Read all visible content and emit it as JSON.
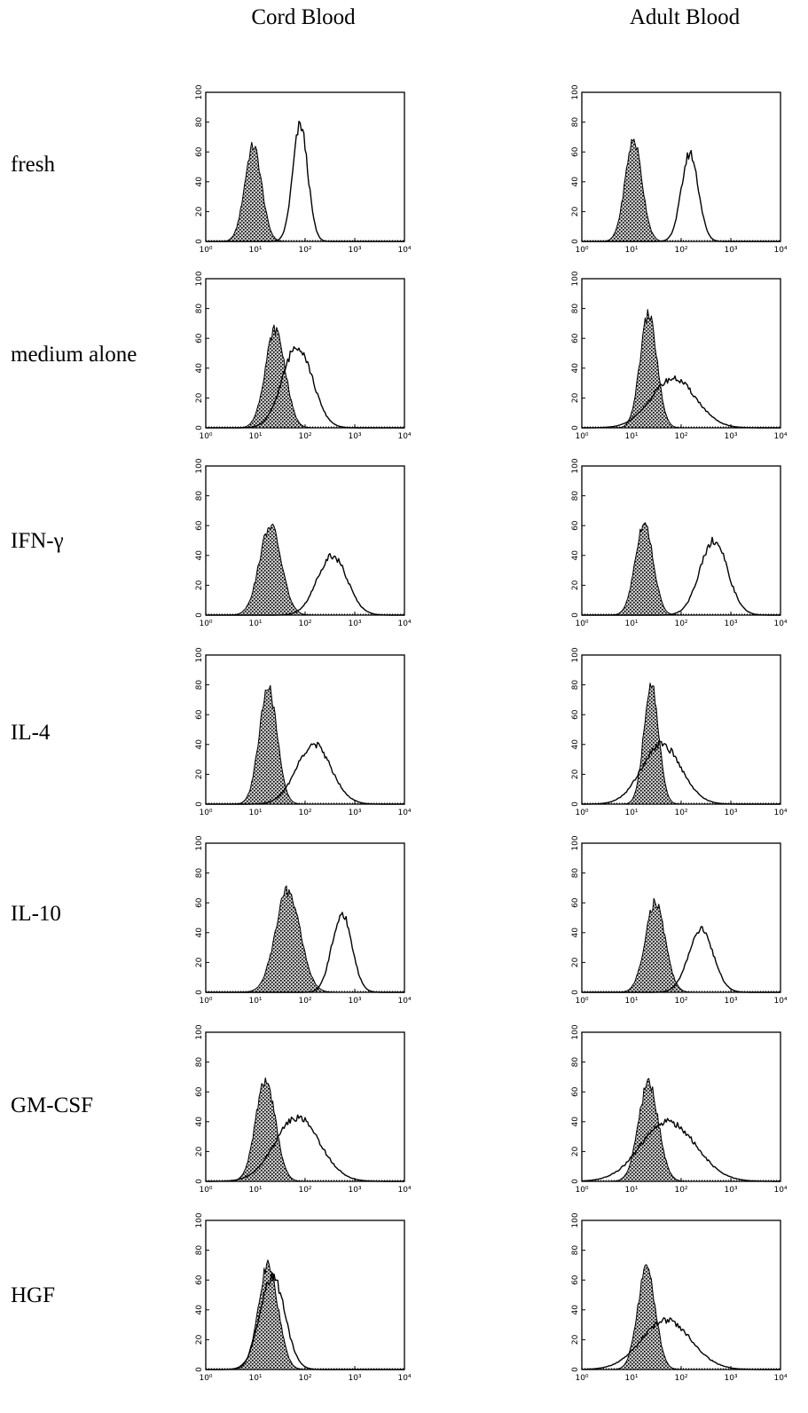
{
  "columns": [
    "Cord Blood",
    "Adult Blood"
  ],
  "rows": [
    "fresh",
    "medium alone",
    "IFN-γ",
    "IL-4",
    "IL-10",
    "GM-CSF",
    "HGF"
  ],
  "chart_data": {
    "type": "area",
    "xscale": "log",
    "xlim": [
      1,
      10000
    ],
    "ylim": [
      0,
      100
    ],
    "xticks": [
      "10⁰",
      "10¹",
      "10²",
      "10³",
      "10⁴"
    ],
    "yticks": [
      "0",
      "20",
      "40",
      "60",
      "80",
      "100"
    ],
    "series_styles": {
      "isotype": "stippled fill",
      "stained": "open line"
    },
    "panels": [
      {
        "row": "fresh",
        "column": "Cord Blood",
        "isotype": {
          "peak_x": 9,
          "peak_y": 64,
          "width_decades": 0.17
        },
        "stained": {
          "peak_x": 80,
          "peak_y": 78,
          "width_decades": 0.15
        }
      },
      {
        "row": "fresh",
        "column": "Adult Blood",
        "isotype": {
          "peak_x": 11,
          "peak_y": 68,
          "width_decades": 0.17
        },
        "stained": {
          "peak_x": 150,
          "peak_y": 59,
          "width_decades": 0.17
        }
      },
      {
        "row": "medium alone",
        "column": "Cord Blood",
        "isotype": {
          "peak_x": 25,
          "peak_y": 66,
          "width_decades": 0.2
        },
        "stained": {
          "peak_x": 70,
          "peak_y": 55,
          "width_decades": 0.3
        }
      },
      {
        "row": "medium alone",
        "column": "Adult Blood",
        "isotype": {
          "peak_x": 22,
          "peak_y": 76,
          "width_decades": 0.17
        },
        "stained": {
          "peak_x": 70,
          "peak_y": 33,
          "width_decades": 0.45
        }
      },
      {
        "row": "IFN-γ",
        "column": "Cord Blood",
        "isotype": {
          "peak_x": 20,
          "peak_y": 60,
          "width_decades": 0.22
        },
        "stained": {
          "peak_x": 350,
          "peak_y": 40,
          "width_decades": 0.3
        }
      },
      {
        "row": "IFN-γ",
        "column": "Adult Blood",
        "isotype": {
          "peak_x": 18,
          "peak_y": 62,
          "width_decades": 0.18
        },
        "stained": {
          "peak_x": 450,
          "peak_y": 50,
          "width_decades": 0.28
        }
      },
      {
        "row": "IL-4",
        "column": "Cord Blood",
        "isotype": {
          "peak_x": 18,
          "peak_y": 78,
          "width_decades": 0.18
        },
        "stained": {
          "peak_x": 150,
          "peak_y": 40,
          "width_decades": 0.35
        }
      },
      {
        "row": "IL-4",
        "column": "Adult Blood",
        "isotype": {
          "peak_x": 25,
          "peak_y": 80,
          "width_decades": 0.15
        },
        "stained": {
          "peak_x": 40,
          "peak_y": 40,
          "width_decades": 0.4
        }
      },
      {
        "row": "IL-10",
        "column": "Cord Blood",
        "isotype": {
          "peak_x": 45,
          "peak_y": 68,
          "width_decades": 0.25
        },
        "stained": {
          "peak_x": 550,
          "peak_y": 53,
          "width_decades": 0.2
        }
      },
      {
        "row": "IL-10",
        "column": "Adult Blood",
        "isotype": {
          "peak_x": 30,
          "peak_y": 60,
          "width_decades": 0.2
        },
        "stained": {
          "peak_x": 250,
          "peak_y": 42,
          "width_decades": 0.25
        }
      },
      {
        "row": "GM-CSF",
        "column": "Cord Blood",
        "isotype": {
          "peak_x": 16,
          "peak_y": 68,
          "width_decades": 0.2
        },
        "stained": {
          "peak_x": 70,
          "peak_y": 43,
          "width_decades": 0.45
        }
      },
      {
        "row": "GM-CSF",
        "column": "Adult Blood",
        "isotype": {
          "peak_x": 22,
          "peak_y": 66,
          "width_decades": 0.2
        },
        "stained": {
          "peak_x": 55,
          "peak_y": 40,
          "width_decades": 0.55
        }
      },
      {
        "row": "HGF",
        "column": "Cord Blood",
        "isotype": {
          "peak_x": 18,
          "peak_y": 70,
          "width_decades": 0.2
        },
        "stained": {
          "peak_x": 22,
          "peak_y": 62,
          "width_decades": 0.25
        }
      },
      {
        "row": "HGF",
        "column": "Adult Blood",
        "isotype": {
          "peak_x": 20,
          "peak_y": 68,
          "width_decades": 0.18
        },
        "stained": {
          "peak_x": 50,
          "peak_y": 33,
          "width_decades": 0.5
        }
      }
    ]
  }
}
